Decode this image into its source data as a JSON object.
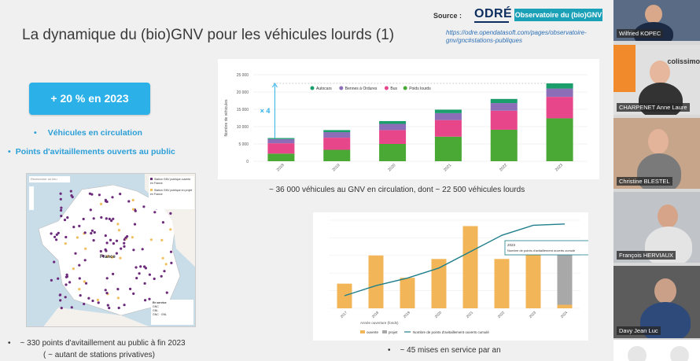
{
  "slide": {
    "title": "La dynamique du (bio)GNV pour les véhicules lourds (1)",
    "source_label": "Source :",
    "source_logo": "ODRÉ",
    "source_button": "Observatoire du (bio)GNV",
    "source_link": "https://odre.opendatasoft.com/pages/observatoire-gnv/gnc#stations-publiques",
    "badge": "+ 20 % en 2023",
    "bullet_vehicles": "Véhicules en circulation",
    "bullet_stations": "Points d'avitaillements ouverts au public",
    "bullet_glyph": "•",
    "caption_vehicles": "~ 36 000 véhicules au GNV en circulation, dont ~ 22 500 véhicules lourds",
    "caption_stations_count": "~ 330 points d'avitaillement au public à fin 2023",
    "caption_stations_private": "( ~ autant de stations privatives)",
    "caption_services": "~ 45 mises en service par an"
  },
  "map": {
    "search_placeholder": "Rechercher un lieu",
    "legend_open": "Station GNV publique ouverte en France",
    "legend_project": "Station GNV publique en projet en France",
    "country_label": "France",
    "legend_box_title": "En service",
    "legend_box_items": [
      "GNC",
      "GNL",
      "GNC · GNL"
    ],
    "colors": {
      "open": "#6b2a7a",
      "project": "#f0c060",
      "sea": "#c9dde9",
      "land": "#ffffff"
    }
  },
  "chart_data": [
    {
      "type": "bar",
      "stacked": true,
      "categories": [
        "2018",
        "2019",
        "2020",
        "2021",
        "2022",
        "2023"
      ],
      "series": [
        {
          "name": "Autocars",
          "color": "#1a9e6b",
          "values": [
            300,
            600,
            800,
            1000,
            1200,
            1500
          ]
        },
        {
          "name": "Bennes à Ordures",
          "color": "#8b6db8",
          "values": [
            1200,
            1600,
            1800,
            2000,
            2200,
            2400
          ]
        },
        {
          "name": "Bus",
          "color": "#e8468a",
          "values": [
            3000,
            3500,
            4000,
            4800,
            5500,
            6200
          ]
        },
        {
          "name": "Poids lourds",
          "color": "#4aa834",
          "values": [
            2200,
            3300,
            5000,
            7100,
            9100,
            12400
          ]
        }
      ],
      "ylabel": "Nombre de véhicules",
      "ylim": [
        0,
        25000
      ],
      "yticks": [
        "0",
        "5 000",
        "10 000",
        "15 000",
        "20 000",
        "25 000"
      ],
      "annotation": "× 4",
      "legend": "top"
    },
    {
      "type": "bar",
      "categories": [
        "2017",
        "2018",
        "2019",
        "2020",
        "2021",
        "2022",
        "2023",
        "2024"
      ],
      "series": [
        {
          "name": "ouverte",
          "color": "#f2b658",
          "values": [
            21,
            45,
            26,
            42,
            70,
            42,
            46,
            3
          ]
        },
        {
          "name": "projet",
          "color": "#a8a8a8",
          "values": [
            0,
            0,
            0,
            0,
            0,
            0,
            0,
            43
          ]
        }
      ],
      "line": {
        "name": "Nombre de points d'avitaillement ouverts cumulé",
        "color": "#1f7f8c",
        "values": [
          50,
          90,
          120,
          160,
          225,
          290,
          330,
          335
        ]
      },
      "xlabel": "Année ouverture (fonds)",
      "tooltip_year": "2023",
      "tooltip_text": "Nombre de points d'avitaillement ouverts cumulé",
      "tooltip_value": "330",
      "legend": "bottom"
    }
  ],
  "participants": [
    {
      "name": "Wilfried KOPEC",
      "bg": "#5a6b85",
      "shirt": "#1d2a44",
      "skin": "#d9a88a"
    },
    {
      "name": "CHARPENET Anne Laure",
      "bg": "#e0e0e0",
      "shirt": "#333333",
      "skin": "#e6b79c",
      "org": "colissimo"
    },
    {
      "name": "Christine BLESTEL",
      "bg": "#c7a58a",
      "shirt": "#7a7a7a",
      "skin": "#e3b39a"
    },
    {
      "name": "François HERVIAUX",
      "bg": "#c0c4c8",
      "shirt": "#e4e4e4",
      "skin": "#d6a488"
    },
    {
      "name": "Davy Jean Luc",
      "bg": "#5c5c5c",
      "shirt": "#2e4a7a",
      "skin": "#caa088"
    }
  ]
}
